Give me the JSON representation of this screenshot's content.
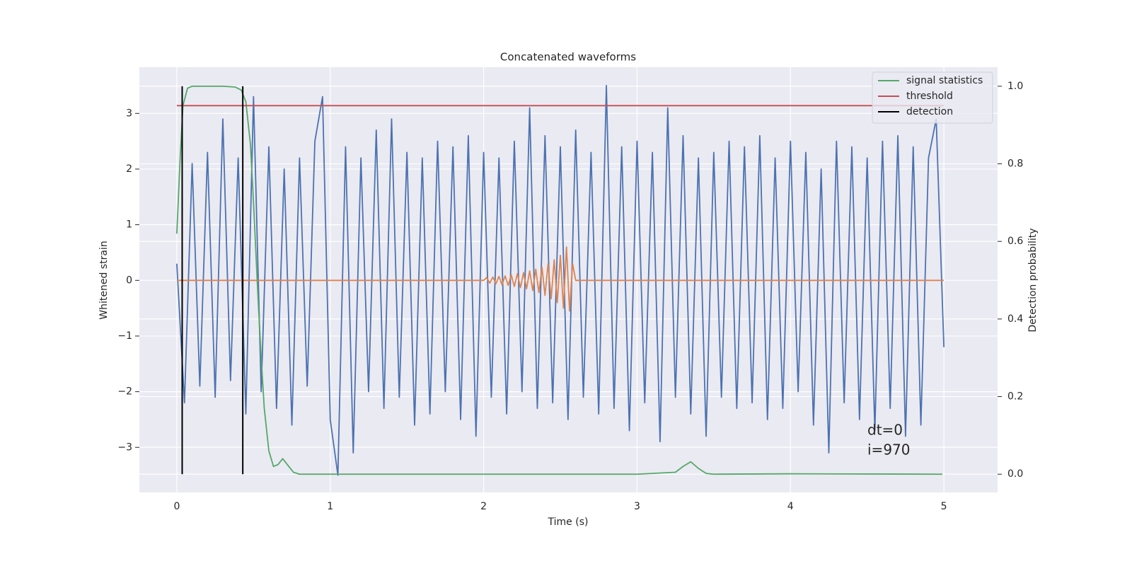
{
  "chart_data": {
    "type": "line",
    "title": "Concatenated waveforms",
    "xlabel": "Time (s)",
    "ylabel": "Whitened strain",
    "y2label": "Detection probability",
    "annotations": [
      "dt=0",
      "i=970"
    ],
    "xlim": [
      -0.244,
      5.35
    ],
    "ylim": [
      -3.81,
      3.83
    ],
    "y2lim": [
      -0.047,
      1.049
    ],
    "xticks": [
      0,
      1,
      2,
      3,
      4,
      5
    ],
    "yticks": [
      {
        "value": -3,
        "label": "−3"
      },
      {
        "value": -2,
        "label": "−2"
      },
      {
        "value": -1,
        "label": "−1"
      },
      0,
      1,
      2,
      3
    ],
    "y2ticks": [
      {
        "value": 0,
        "label": "0.0"
      },
      0.2,
      0.4,
      0.6,
      0.8,
      {
        "value": 1,
        "label": "1.0"
      }
    ],
    "grid": true,
    "legend": "upper right",
    "series": [
      {
        "color": "#4c72b0",
        "axis": "y",
        "x": [
          0,
          0.05,
          0.1,
          0.15,
          0.2,
          0.25,
          0.3,
          0.35,
          0.4,
          0.45,
          0.5,
          0.55,
          0.6,
          0.65,
          0.7,
          0.75,
          0.8,
          0.85,
          0.9,
          0.95,
          1,
          1.05,
          1.1,
          1.15,
          1.2,
          1.25,
          1.3,
          1.35,
          1.4,
          1.45,
          1.5,
          1.55,
          1.6,
          1.65,
          1.7,
          1.75,
          1.8,
          1.85,
          1.9,
          1.95,
          2,
          2.05,
          2.1,
          2.15,
          2.2,
          2.25,
          2.3,
          2.35,
          2.4,
          2.45,
          2.5,
          2.55,
          2.6,
          2.65,
          2.7,
          2.75,
          2.8,
          2.85,
          2.9,
          2.95,
          3,
          3.05,
          3.1,
          3.15,
          3.2,
          3.25,
          3.3,
          3.35,
          3.4,
          3.45,
          3.5,
          3.55,
          3.6,
          3.65,
          3.7,
          3.75,
          3.8,
          3.85,
          3.9,
          3.95,
          4,
          4.05,
          4.1,
          4.15,
          4.2,
          4.25,
          4.3,
          4.35,
          4.4,
          4.45,
          4.5,
          4.55,
          4.6,
          4.65,
          4.7,
          4.75,
          4.8,
          4.85,
          4.9,
          4.95,
          5
        ],
        "values": [
          0.3,
          -2.2,
          2.1,
          -1.9,
          2.3,
          -2.1,
          2.9,
          -1.8,
          2.2,
          -2.4,
          3.3,
          -2.0,
          2.4,
          -2.3,
          2.0,
          -2.6,
          2.2,
          -1.9,
          2.5,
          3.3,
          -2.5,
          -3.5,
          2.4,
          -3.1,
          2.2,
          -2.0,
          2.7,
          -2.3,
          2.9,
          -2.1,
          2.3,
          -2.6,
          2.2,
          -2.4,
          2.5,
          -2.0,
          2.4,
          -2.5,
          2.6,
          -2.8,
          2.3,
          -2.1,
          2.2,
          -2.4,
          2.5,
          -2.0,
          3.1,
          -2.3,
          2.6,
          -2.2,
          2.4,
          -2.5,
          2.7,
          -2.1,
          2.3,
          -2.4,
          3.5,
          -2.3,
          2.4,
          -2.7,
          2.5,
          -2.2,
          2.3,
          -2.9,
          3.1,
          -2.1,
          2.6,
          -2.4,
          2.2,
          -2.8,
          2.3,
          -2.1,
          2.5,
          -2.3,
          2.4,
          -2.2,
          2.6,
          -2.5,
          2.2,
          -2.3,
          2.5,
          -2.0,
          2.3,
          -2.6,
          2.0,
          -3.1,
          2.5,
          -2.2,
          2.4,
          -2.5,
          2.2,
          -2.7,
          2.5,
          -2.3,
          2.6,
          -2.8,
          2.4,
          -2.6,
          2.2,
          2.9,
          -1.2
        ]
      },
      {
        "color": "#dd8452",
        "axis": "y",
        "x": [
          0,
          2,
          2.02,
          2.04,
          2.06,
          2.08,
          2.1,
          2.12,
          2.14,
          2.16,
          2.18,
          2.2,
          2.22,
          2.24,
          2.26,
          2.28,
          2.3,
          2.32,
          2.34,
          2.36,
          2.38,
          2.4,
          2.42,
          2.44,
          2.46,
          2.48,
          2.5,
          2.52,
          2.54,
          2.56,
          2.58,
          2.6,
          5
        ],
        "values": [
          0,
          0,
          0.05,
          -0.05,
          0.06,
          -0.06,
          0.07,
          -0.08,
          0.08,
          -0.09,
          0.1,
          -0.11,
          0.12,
          -0.13,
          0.14,
          -0.15,
          0.17,
          -0.18,
          0.2,
          -0.22,
          0.24,
          -0.27,
          0.3,
          -0.33,
          0.37,
          -0.4,
          0.45,
          -0.5,
          0.6,
          -0.55,
          0.3,
          0,
          0
        ]
      },
      {
        "name": "signal statistics",
        "color": "#55a868",
        "axis": "y2",
        "x": [
          0,
          0.02,
          0.04,
          0.07,
          0.1,
          0.2,
          0.3,
          0.38,
          0.42,
          0.45,
          0.48,
          0.5,
          0.53,
          0.55,
          0.57,
          0.6,
          0.63,
          0.66,
          0.69,
          0.72,
          0.76,
          0.8,
          1,
          2,
          3,
          3.25,
          3.3,
          3.35,
          3.4,
          3.45,
          3.5,
          4,
          4.99
        ],
        "values": [
          0.62,
          0.8,
          0.95,
          0.995,
          1,
          1,
          1,
          0.998,
          0.99,
          0.96,
          0.85,
          0.7,
          0.45,
          0.3,
          0.17,
          0.06,
          0.02,
          0.025,
          0.04,
          0.025,
          0.005,
          0,
          0,
          0,
          0,
          0.005,
          0.02,
          0.032,
          0.015,
          0.002,
          0,
          0.001,
          0
        ]
      },
      {
        "name": "threshold",
        "color": "#c44e52",
        "axis": "y2",
        "x": [
          0,
          5
        ],
        "values": [
          0.95,
          0.95
        ]
      },
      {
        "name": "detection",
        "color": "#000000",
        "axis": "y2",
        "type": "vline",
        "x": [
          0.035,
          0.43
        ],
        "ymin": 0,
        "ymax": 1
      }
    ]
  }
}
